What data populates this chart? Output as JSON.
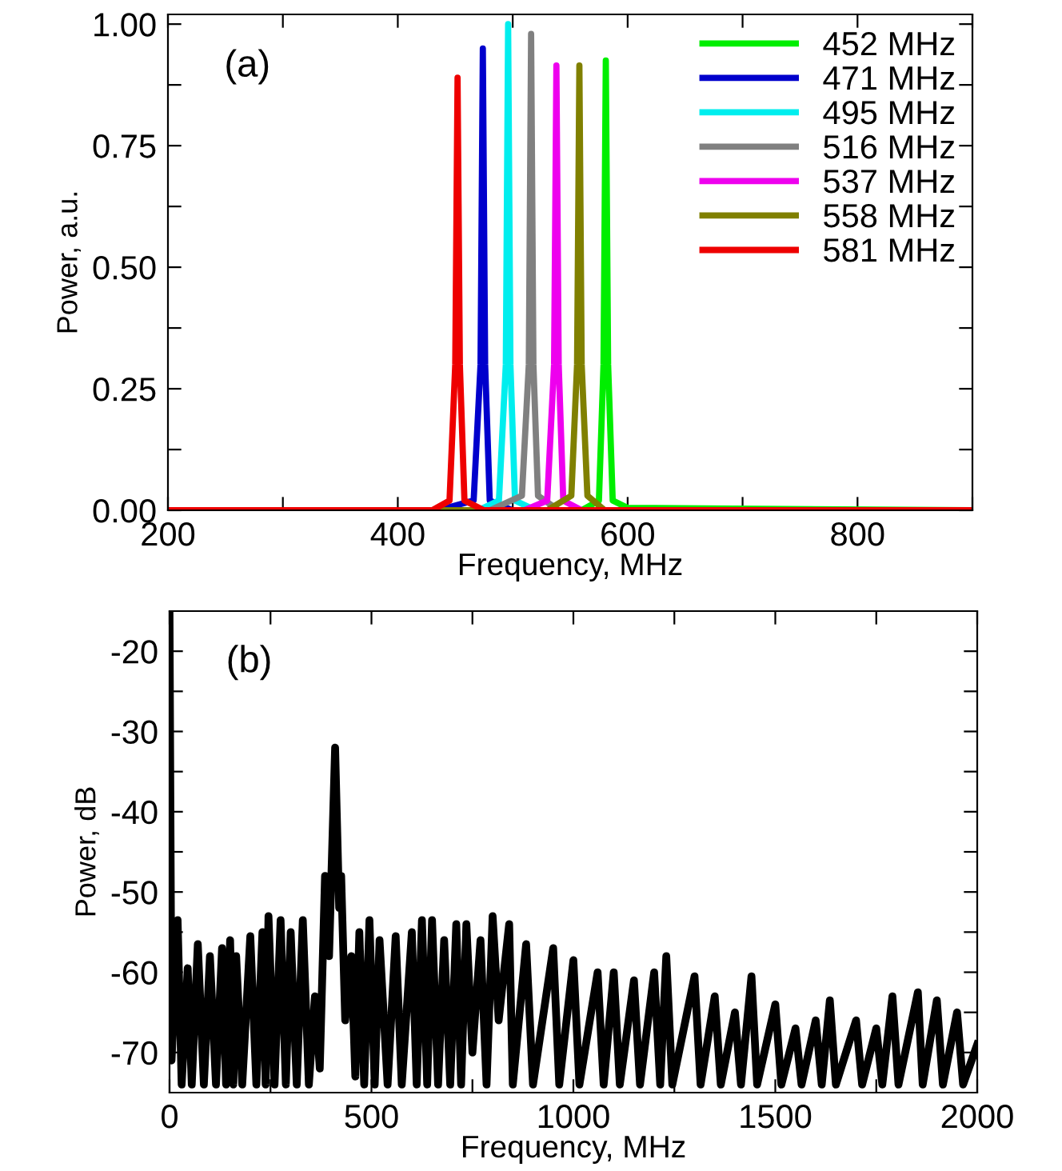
{
  "chart_data": [
    {
      "type": "line",
      "xlabel": "Frequency, MHz",
      "ylabel": "Power, a.u.",
      "annotations": [
        "(a)"
      ],
      "xlim": [
        200,
        900
      ],
      "ylim": [
        0,
        1.02
      ],
      "xticks": [
        200,
        {
          "value": 300,
          "label": null
        },
        400,
        {
          "value": 500,
          "label": null
        },
        600,
        {
          "value": 700,
          "label": null
        },
        800,
        {
          "value": 900,
          "label": null
        }
      ],
      "yticks": [
        {
          "value": 0,
          "label": "0.00"
        },
        {
          "value": 0.125,
          "label": null
        },
        {
          "value": 0.25,
          "label": "0.25"
        },
        {
          "value": 0.375,
          "label": null
        },
        {
          "value": 0.5,
          "label": "0.50"
        },
        {
          "value": 0.625,
          "label": null
        },
        {
          "value": 0.75,
          "label": "0.75"
        },
        {
          "value": 0.875,
          "label": null
        },
        {
          "value": 1,
          "label": "1.00"
        }
      ],
      "legend": "top right",
      "grid": false,
      "line_style": "solid",
      "marker": "none",
      "series": [
        {
          "name": "452 MHz",
          "color": "#00ee00",
          "x": [
            200,
            560,
            575,
            579,
            581,
            583,
            587,
            600,
            900
          ],
          "values": [
            0,
            0,
            0.02,
            0.3,
            0.925,
            0.3,
            0.02,
            0.005,
            0
          ]
        },
        {
          "name": "471 MHz",
          "color": "#0000cc",
          "x": [
            200,
            435,
            466,
            472,
            474,
            476,
            480,
            500,
            900
          ],
          "values": [
            0,
            0,
            0.02,
            0.3,
            0.95,
            0.3,
            0.02,
            0,
            0
          ]
        },
        {
          "name": "495 MHz",
          "color": "#00eeee",
          "x": [
            200,
            470,
            488,
            494,
            496,
            498,
            502,
            520,
            900
          ],
          "values": [
            0,
            0,
            0.02,
            0.3,
            1.0,
            0.3,
            0.02,
            0,
            0
          ]
        },
        {
          "name": "516 MHz",
          "color": "#808080",
          "x": [
            200,
            480,
            508,
            514,
            516,
            518,
            522,
            540,
            900
          ],
          "values": [
            0,
            0,
            0.03,
            0.3,
            0.98,
            0.3,
            0.03,
            0,
            0
          ]
        },
        {
          "name": "537 MHz",
          "color": "#ee00ee",
          "x": [
            200,
            510,
            530,
            536,
            538,
            540,
            544,
            560,
            900
          ],
          "values": [
            0,
            0,
            0.02,
            0.3,
            0.915,
            0.3,
            0.02,
            0,
            0
          ]
        },
        {
          "name": "558 MHz",
          "color": "#808000",
          "x": [
            200,
            530,
            551,
            556,
            558,
            560,
            565,
            580,
            900
          ],
          "values": [
            0,
            0,
            0.03,
            0.3,
            0.915,
            0.3,
            0.03,
            0,
            0
          ]
        },
        {
          "name": "581 MHz",
          "color": "#ee0000",
          "x": [
            200,
            430,
            445,
            450,
            452,
            454,
            458,
            475,
            900
          ],
          "values": [
            0,
            0,
            0.02,
            0.3,
            0.89,
            0.3,
            0.02,
            0,
            0
          ]
        }
      ]
    },
    {
      "type": "line",
      "xlabel": "Frequency, MHz",
      "ylabel": "Power, dB",
      "annotations": [
        "(b)"
      ],
      "xlim": [
        0,
        2000
      ],
      "ylim": [
        -75,
        -15
      ],
      "xticks": [
        0,
        {
          "value": 250,
          "label": null
        },
        500,
        {
          "value": 750,
          "label": null
        },
        1000,
        {
          "value": 1250,
          "label": null
        },
        1500,
        {
          "value": 1750,
          "label": null
        },
        2000
      ],
      "yticks": [
        -20,
        {
          "value": -25,
          "label": null
        },
        -30,
        {
          "value": -35,
          "label": null
        },
        -40,
        {
          "value": -45,
          "label": null
        },
        -50,
        {
          "value": -55,
          "label": null
        },
        -60,
        {
          "value": -65,
          "label": null
        },
        -70
      ],
      "grid": false,
      "line_style": "solid",
      "marker": "none",
      "series": [
        {
          "color": "#000000",
          "x": [
            0,
            5,
            20,
            30,
            45,
            55,
            70,
            85,
            100,
            115,
            130,
            140,
            150,
            158,
            165,
            180,
            200,
            215,
            230,
            238,
            245,
            260,
            275,
            288,
            300,
            315,
            330,
            345,
            360,
            372,
            385,
            395,
            410,
            420,
            425,
            435,
            450,
            460,
            470,
            482,
            495,
            508,
            520,
            540,
            560,
            575,
            600,
            612,
            625,
            638,
            650,
            665,
            680,
            695,
            710,
            722,
            735,
            750,
            770,
            785,
            800,
            815,
            841,
            850,
            883,
            900,
            950,
            965,
            1000,
            1015,
            1060,
            1075,
            1100,
            1115,
            1150,
            1165,
            1200,
            1215,
            1230,
            1245,
            1300,
            1315,
            1350,
            1365,
            1400,
            1415,
            1441,
            1455,
            1500,
            1515,
            1550,
            1565,
            1600,
            1615,
            1635,
            1650,
            1700,
            1715,
            1750,
            1765,
            1790,
            1805,
            1853,
            1865,
            1900,
            1915,
            1950,
            1965,
            2000
          ],
          "values": [
            -15.5,
            -71,
            -53.5,
            -74,
            -59.5,
            -74,
            -56.5,
            -74,
            -58,
            -74,
            -57,
            -74,
            -56,
            -74,
            -58,
            -74,
            -55.5,
            -74,
            -55,
            -74,
            -53,
            -74,
            -53.5,
            -74,
            -55,
            -74,
            -53.5,
            -74,
            -63,
            -72,
            -48,
            -58,
            -32,
            -52,
            -48,
            -66,
            -58,
            -73,
            -55,
            -74,
            -53.5,
            -74,
            -56,
            -74,
            -55.5,
            -74,
            -55,
            -74,
            -53.5,
            -74,
            -53.5,
            -74,
            -56,
            -74,
            -54,
            -74,
            -54,
            -70,
            -56,
            -74,
            -53,
            -66,
            -54,
            -74,
            -56.5,
            -74,
            -57,
            -74,
            -58.5,
            -74,
            -60,
            -74,
            -60,
            -74,
            -61,
            -74,
            -60,
            -74,
            -58,
            -74,
            -60.5,
            -74,
            -63,
            -74,
            -65,
            -74,
            -60.5,
            -74,
            -64,
            -74,
            -67,
            -74,
            -66,
            -74,
            -63.5,
            -74,
            -66,
            -74,
            -67,
            -74,
            -63,
            -74,
            -62.5,
            -74,
            -63.5,
            -74,
            -65,
            -74,
            -69
          ]
        }
      ]
    }
  ]
}
